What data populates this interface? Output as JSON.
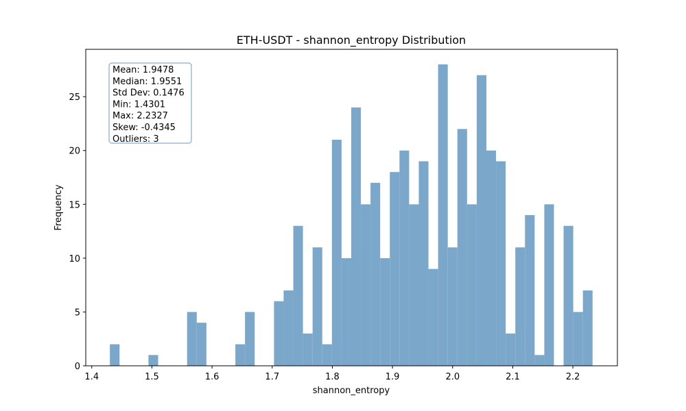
{
  "chart_data": {
    "type": "bar",
    "title": "ETH-USDT - shannon_entropy Distribution",
    "xlabel": "shannon_entropy",
    "ylabel": "Frequency",
    "xlim": [
      1.39,
      2.274
    ],
    "ylim": [
      0,
      29.4
    ],
    "x_ticks": [
      1.4,
      1.5,
      1.6,
      1.7,
      1.8,
      1.9,
      2.0,
      2.1,
      2.2
    ],
    "y_ticks": [
      0,
      5,
      10,
      15,
      20,
      25
    ],
    "bins": {
      "start": 1.4301,
      "end": 2.2327,
      "counts": [
        2,
        0,
        0,
        0,
        1,
        0,
        0,
        0,
        5,
        4,
        0,
        0,
        0,
        2,
        5,
        0,
        0,
        6,
        7,
        13,
        3,
        11,
        2,
        21,
        10,
        24,
        15,
        17,
        10,
        18,
        20,
        15,
        19,
        9,
        28,
        11,
        22,
        15,
        27,
        20,
        19,
        3,
        11,
        14,
        1,
        15,
        0,
        13,
        5,
        7
      ]
    },
    "bar_color": "#7ba7cb",
    "grid": false,
    "stats_box": {
      "placement": "top-left",
      "lines": [
        "Mean: 1.9478",
        "Median: 1.9551",
        "Std Dev: 0.1476",
        "Min: 1.4301",
        "Max: 2.2327",
        "Skew: -0.4345",
        "Outliers: 3"
      ]
    }
  }
}
